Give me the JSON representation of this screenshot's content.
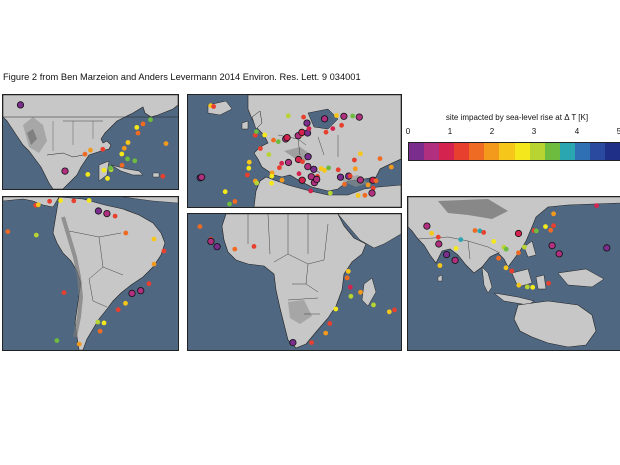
{
  "title": "Figure 2 from Ben Marzeion and Anders Levermann 2014 Environ. Res. Lett. 9 034001",
  "legend": {
    "title": "site impacted by sea-level rise at Δ T [K]",
    "ticks": [
      "0",
      "1",
      "2",
      "3",
      "4",
      "5"
    ],
    "colors": [
      "#7b2d8e",
      "#b0307f",
      "#d4234f",
      "#e8402e",
      "#ef6a22",
      "#f39a1c",
      "#f7c61b",
      "#f4e81d",
      "#b7d432",
      "#6dbb3f",
      "#2aa6b0",
      "#2f6fb3",
      "#2a4aa0",
      "#1f2e87"
    ]
  },
  "panels": [
    {
      "name": "north-america",
      "sites": [
        {
          "lon": -123.0,
          "lat": 48.8,
          "dt": 0.3
        },
        {
          "lon": -71.0,
          "lat": 42.5,
          "dt": 3.3
        },
        {
          "lon": -74.0,
          "lat": 40.7,
          "dt": 1.7
        },
        {
          "lon": -76.5,
          "lat": 39.2,
          "dt": 2.7
        },
        {
          "lon": -76.0,
          "lat": 36.8,
          "dt": 1.5
        },
        {
          "lon": -80.0,
          "lat": 32.8,
          "dt": 2.3
        },
        {
          "lon": -81.5,
          "lat": 30.3,
          "dt": 1.9
        },
        {
          "lon": -80.2,
          "lat": 25.8,
          "dt": 3.4
        },
        {
          "lon": -82.5,
          "lat": 27.9,
          "dt": 2.8
        },
        {
          "lon": -90.1,
          "lat": 29.9,
          "dt": 1.2
        },
        {
          "lon": -95.0,
          "lat": 29.5,
          "dt": 1.8
        },
        {
          "lon": -97.2,
          "lat": 27.8,
          "dt": 1.6
        },
        {
          "lon": -86.8,
          "lat": 21.2,
          "dt": 2.9
        },
        {
          "lon": -87.0,
          "lat": 22.0,
          "dt": 3.5
        },
        {
          "lon": -89.6,
          "lat": 21.0,
          "dt": 2.6
        },
        {
          "lon": -82.4,
          "lat": 23.1,
          "dt": 1.7
        },
        {
          "lon": -77.3,
          "lat": 25.0,
          "dt": 3.3
        },
        {
          "lon": -66.1,
          "lat": 18.4,
          "dt": 1.4
        },
        {
          "lon": -64.8,
          "lat": 32.3,
          "dt": 1.9
        },
        {
          "lon": -105.2,
          "lat": 20.6,
          "dt": 0.4
        },
        {
          "lon": -96.1,
          "lat": 19.2,
          "dt": 2.8
        },
        {
          "lon": -88.2,
          "lat": 17.5,
          "dt": 2.5
        }
      ]
    },
    {
      "name": "europe",
      "sites": [
        {
          "lon": -22.0,
          "lat": 64.1,
          "dt": 2.3
        },
        {
          "lon": -21.0,
          "lat": 63.8,
          "dt": 1.2
        },
        {
          "lon": -25.7,
          "lat": 37.7,
          "dt": 0.2
        },
        {
          "lon": -25.2,
          "lat": 37.9,
          "dt": 0.6
        },
        {
          "lon": -16.9,
          "lat": 32.6,
          "dt": 2.5
        },
        {
          "lon": -15.4,
          "lat": 28.1,
          "dt": 3.3
        },
        {
          "lon": -13.5,
          "lat": 29.0,
          "dt": 1.6
        },
        {
          "lon": -9.1,
          "lat": 38.7,
          "dt": 1.2
        },
        {
          "lon": -8.6,
          "lat": 41.2,
          "dt": 2.7
        },
        {
          "lon": -6.3,
          "lat": 36.5,
          "dt": 1.8
        },
        {
          "lon": -5.8,
          "lat": 35.8,
          "dt": 3.0
        },
        {
          "lon": -8.4,
          "lat": 43.4,
          "dt": 2.3
        },
        {
          "lon": -4.5,
          "lat": 48.4,
          "dt": 1.3
        },
        {
          "lon": -1.5,
          "lat": 46.2,
          "dt": 3.2
        },
        {
          "lon": -6.3,
          "lat": 53.3,
          "dt": 1.4
        },
        {
          "lon": -3.0,
          "lat": 53.4,
          "dt": 2.6
        },
        {
          "lon": -5.9,
          "lat": 54.6,
          "dt": 3.4
        },
        {
          "lon": 0.1,
          "lat": 51.5,
          "dt": 1.6
        },
        {
          "lon": 1.8,
          "lat": 50.9,
          "dt": 3.3
        },
        {
          "lon": 4.4,
          "lat": 51.9,
          "dt": 0.4
        },
        {
          "lon": 4.9,
          "lat": 52.4,
          "dt": 0.9
        },
        {
          "lon": 8.8,
          "lat": 53.1,
          "dt": 0.6
        },
        {
          "lon": 10.0,
          "lat": 53.6,
          "dt": 1.3
        },
        {
          "lon": 10.1,
          "lat": 54.3,
          "dt": 0.8
        },
        {
          "lon": 12.1,
          "lat": 54.1,
          "dt": 0.2
        },
        {
          "lon": 12.6,
          "lat": 55.7,
          "dt": 1.0
        },
        {
          "lon": 18.1,
          "lat": 59.3,
          "dt": 0.6
        },
        {
          "lon": 18.6,
          "lat": 54.4,
          "dt": 1.4
        },
        {
          "lon": 24.1,
          "lat": 56.9,
          "dt": 1.3
        },
        {
          "lon": 24.9,
          "lat": 60.2,
          "dt": 0.5
        },
        {
          "lon": 22.3,
          "lat": 60.5,
          "dt": 2.3
        },
        {
          "lon": 30.3,
          "lat": 59.9,
          "dt": 0.4
        },
        {
          "lon": 21.0,
          "lat": 55.7,
          "dt": 1.0
        },
        {
          "lon": 28.0,
          "lat": 60.3,
          "dt": 3.4
        },
        {
          "lon": 10.7,
          "lat": 59.9,
          "dt": 1.2
        },
        {
          "lon": 5.3,
          "lat": 60.4,
          "dt": 2.9
        },
        {
          "lon": 11.9,
          "lat": 57.7,
          "dt": 0.3
        },
        {
          "lon": 3.0,
          "lat": 43.0,
          "dt": 1.0
        },
        {
          "lon": 5.4,
          "lat": 43.3,
          "dt": 0.5
        },
        {
          "lon": 8.9,
          "lat": 44.4,
          "dt": 0.9
        },
        {
          "lon": 10.3,
          "lat": 43.6,
          "dt": 1.4
        },
        {
          "lon": 12.3,
          "lat": 45.4,
          "dt": 0.3
        },
        {
          "lon": 12.2,
          "lat": 41.8,
          "dt": 0.6
        },
        {
          "lon": 14.3,
          "lat": 40.8,
          "dt": 0.2
        },
        {
          "lon": 15.6,
          "lat": 38.2,
          "dt": 1.2
        },
        {
          "lon": 13.4,
          "lat": 38.1,
          "dt": 0.5
        },
        {
          "lon": 9.1,
          "lat": 39.2,
          "dt": 1.0
        },
        {
          "lon": 16.9,
          "lat": 41.1,
          "dt": 2.2
        },
        {
          "lon": 14.5,
          "lat": 35.9,
          "dt": 0.7
        },
        {
          "lon": 10.2,
          "lat": 36.8,
          "dt": 0.8
        },
        {
          "lon": 3.1,
          "lat": 36.8,
          "dt": 1.8
        },
        {
          "lon": -0.6,
          "lat": 35.7,
          "dt": 2.7
        },
        {
          "lon": 2.2,
          "lat": 41.4,
          "dt": 1.3
        },
        {
          "lon": -0.4,
          "lat": 39.5,
          "dt": 1.9
        },
        {
          "lon": -0.5,
          "lat": 38.3,
          "dt": 2.6
        },
        {
          "lon": 15.3,
          "lat": 37.1,
          "dt": 0.4
        },
        {
          "lon": 18.1,
          "lat": 40.4,
          "dt": 2.3
        },
        {
          "lon": 19.5,
          "lat": 41.3,
          "dt": 3.5
        },
        {
          "lon": 23.7,
          "lat": 37.9,
          "dt": 0.3
        },
        {
          "lon": 22.9,
          "lat": 40.6,
          "dt": 1.4
        },
        {
          "lon": 25.1,
          "lat": 35.3,
          "dt": 1.7
        },
        {
          "lon": 26.6,
          "lat": 38.3,
          "dt": 0.2
        },
        {
          "lon": 28.9,
          "lat": 41.0,
          "dt": 1.8
        },
        {
          "lon": 27.1,
          "lat": 38.4,
          "dt": 1.2
        },
        {
          "lon": 30.7,
          "lat": 36.9,
          "dt": 0.5
        },
        {
          "lon": 28.6,
          "lat": 44.2,
          "dt": 1.2
        },
        {
          "lon": 30.7,
          "lat": 46.5,
          "dt": 2.4
        },
        {
          "lon": 33.4,
          "lat": 35.1,
          "dt": 1.9
        },
        {
          "lon": 35.2,
          "lat": 33.9,
          "dt": 1.4
        },
        {
          "lon": 34.8,
          "lat": 32.1,
          "dt": 0.6
        },
        {
          "lon": 29.9,
          "lat": 31.2,
          "dt": 2.3
        },
        {
          "lon": 32.3,
          "lat": 31.3,
          "dt": 1.5
        },
        {
          "lon": 20.1,
          "lat": 32.1,
          "dt": 3.2
        },
        {
          "lon": 13.2,
          "lat": 32.9,
          "dt": 1.0
        },
        {
          "lon": 37.6,
          "lat": 44.7,
          "dt": 1.6
        },
        {
          "lon": 41.6,
          "lat": 41.6,
          "dt": 2.1
        },
        {
          "lon": 35.1,
          "lat": 36.8,
          "dt": 0.9
        },
        {
          "lon": 36.2,
          "lat": 36.6,
          "dt": 1.6
        }
      ]
    },
    {
      "name": "south-america",
      "sites": [
        {
          "lon": -80.4,
          "lat": 8.9,
          "dt": 1.3
        },
        {
          "lon": -79.5,
          "lat": 9.1,
          "dt": 2.3
        },
        {
          "lon": -75.5,
          "lat": 10.4,
          "dt": 1.2
        },
        {
          "lon": -71.6,
          "lat": 10.7,
          "dt": 2.6
        },
        {
          "lon": -66.9,
          "lat": 10.6,
          "dt": 1.2
        },
        {
          "lon": -61.5,
          "lat": 10.7,
          "dt": 2.8
        },
        {
          "lon": -58.2,
          "lat": 6.8,
          "dt": 0.2
        },
        {
          "lon": -55.2,
          "lat": 5.8,
          "dt": 0.4
        },
        {
          "lon": -52.3,
          "lat": 4.9,
          "dt": 1.3
        },
        {
          "lon": -48.5,
          "lat": -1.4,
          "dt": 1.5
        },
        {
          "lon": -38.5,
          "lat": -3.7,
          "dt": 2.4
        },
        {
          "lon": -35.0,
          "lat": -8.1,
          "dt": 1.2
        },
        {
          "lon": -38.5,
          "lat": -13.0,
          "dt": 1.8
        },
        {
          "lon": -40.3,
          "lat": -20.3,
          "dt": 1.2
        },
        {
          "lon": -43.2,
          "lat": -22.9,
          "dt": 0.6
        },
        {
          "lon": -46.3,
          "lat": -23.9,
          "dt": 0.4
        },
        {
          "lon": -48.6,
          "lat": -27.6,
          "dt": 2.4
        },
        {
          "lon": -51.2,
          "lat": -30.0,
          "dt": 1.3
        },
        {
          "lon": -56.2,
          "lat": -34.9,
          "dt": 2.8
        },
        {
          "lon": -58.4,
          "lat": -34.6,
          "dt": 2.9
        },
        {
          "lon": -57.6,
          "lat": -38.0,
          "dt": 1.5
        },
        {
          "lon": -65.0,
          "lat": -42.8,
          "dt": 1.8
        },
        {
          "lon": -72.9,
          "lat": -41.5,
          "dt": 3.5
        },
        {
          "lon": -70.4,
          "lat": -23.6,
          "dt": 1.2
        },
        {
          "lon": -80.2,
          "lat": -2.2,
          "dt": 3.1
        },
        {
          "lon": -90.3,
          "lat": -0.9,
          "dt": 1.7
        }
      ]
    },
    {
      "name": "africa",
      "sites": [
        {
          "lon": -17.4,
          "lat": 14.7,
          "dt": 1.6
        },
        {
          "lon": -13.2,
          "lat": 9.5,
          "dt": 1.2
        },
        {
          "lon": -13.2,
          "lat": 8.5,
          "dt": 0.6
        },
        {
          "lon": -10.8,
          "lat": 6.3,
          "dt": 0.2
        },
        {
          "lon": -4.0,
          "lat": 5.3,
          "dt": 1.7
        },
        {
          "lon": 3.4,
          "lat": 6.4,
          "dt": 1.3
        },
        {
          "lon": 39.7,
          "lat": -4.0,
          "dt": 2.3
        },
        {
          "lon": 39.3,
          "lat": -6.8,
          "dt": 1.5
        },
        {
          "lon": 40.5,
          "lat": -10.7,
          "dt": 1.0
        },
        {
          "lon": 40.7,
          "lat": -14.5,
          "dt": 2.9
        },
        {
          "lon": 34.9,
          "lat": -19.8,
          "dt": 2.8
        },
        {
          "lon": 32.6,
          "lat": -25.9,
          "dt": 1.2
        },
        {
          "lon": 31.0,
          "lat": -29.9,
          "dt": 1.8
        },
        {
          "lon": 44.4,
          "lat": -12.8,
          "dt": 2.1
        },
        {
          "lon": 49.4,
          "lat": -18.1,
          "dt": 3.0
        },
        {
          "lon": 57.5,
          "lat": -20.2,
          "dt": 1.3
        },
        {
          "lon": 55.5,
          "lat": -21.0,
          "dt": 2.2
        },
        {
          "lon": 18.4,
          "lat": -33.9,
          "dt": 0.3
        },
        {
          "lon": 25.6,
          "lat": -33.9,
          "dt": 1.4
        }
      ]
    },
    {
      "name": "asia-oceania",
      "sites": [
        {
          "lon": 72.8,
          "lat": 19.0,
          "dt": 1.2
        },
        {
          "lon": 68.0,
          "lat": 24.8,
          "dt": 0.5
        },
        {
          "lon": 70.0,
          "lat": 21.0,
          "dt": 2.3
        },
        {
          "lon": 73.0,
          "lat": 15.4,
          "dt": 0.4
        },
        {
          "lon": 76.3,
          "lat": 9.9,
          "dt": 0.3
        },
        {
          "lon": 79.9,
          "lat": 6.9,
          "dt": 0.5
        },
        {
          "lon": 73.5,
          "lat": 4.2,
          "dt": 2.2
        },
        {
          "lon": 80.3,
          "lat": 13.1,
          "dt": 2.8
        },
        {
          "lon": 82.3,
          "lat": 17.7,
          "dt": 3.7
        },
        {
          "lon": 88.3,
          "lat": 22.5,
          "dt": 1.6
        },
        {
          "lon": 90.4,
          "lat": 22.3,
          "dt": 3.9
        },
        {
          "lon": 92.0,
          "lat": 21.5,
          "dt": 1.2
        },
        {
          "lon": 96.2,
          "lat": 16.8,
          "dt": 2.6
        },
        {
          "lon": 100.5,
          "lat": 13.7,
          "dt": 2.9
        },
        {
          "lon": 101.5,
          "lat": 12.7,
          "dt": 3.3
        },
        {
          "lon": 103.8,
          "lat": 1.3,
          "dt": 1.2
        },
        {
          "lon": 101.4,
          "lat": 3.0,
          "dt": 2.4
        },
        {
          "lon": 98.3,
          "lat": 8.0,
          "dt": 1.7
        },
        {
          "lon": 106.7,
          "lat": 10.8,
          "dt": 1.6
        },
        {
          "lon": 109.2,
          "lat": 13.8,
          "dt": 3.2
        },
        {
          "lon": 106.7,
          "lat": 20.9,
          "dt": 0.8
        },
        {
          "lon": 113.3,
          "lat": 22.5,
          "dt": 1.3
        },
        {
          "lon": 114.2,
          "lat": 22.3,
          "dt": 3.5
        },
        {
          "lon": 118.1,
          "lat": 24.5,
          "dt": 2.8
        },
        {
          "lon": 121.5,
          "lat": 31.2,
          "dt": 1.8
        },
        {
          "lon": 121.5,
          "lat": 25.0,
          "dt": 1.2
        },
        {
          "lon": 120.3,
          "lat": 22.6,
          "dt": 1.6
        },
        {
          "lon": 120.9,
          "lat": 14.6,
          "dt": 0.6
        },
        {
          "lon": 123.9,
          "lat": 10.3,
          "dt": 0.5
        },
        {
          "lon": 106.8,
          "lat": -6.1,
          "dt": 2.3
        },
        {
          "lon": 110.4,
          "lat": -7.0,
          "dt": 3.0
        },
        {
          "lon": 112.7,
          "lat": -7.2,
          "dt": 2.5
        },
        {
          "lon": 119.4,
          "lat": -5.1,
          "dt": 1.1
        },
        {
          "lon": 139.7,
          "lat": 35.5,
          "dt": 1.0
        },
        {
          "lon": 144.0,
          "lat": 13.4,
          "dt": 0.2
        },
        {
          "lon": 153.0,
          "lat": -27.5,
          "dt": 2.0
        },
        {
          "lon": 151.2,
          "lat": -33.9,
          "dt": 1.4
        }
      ]
    }
  ]
}
